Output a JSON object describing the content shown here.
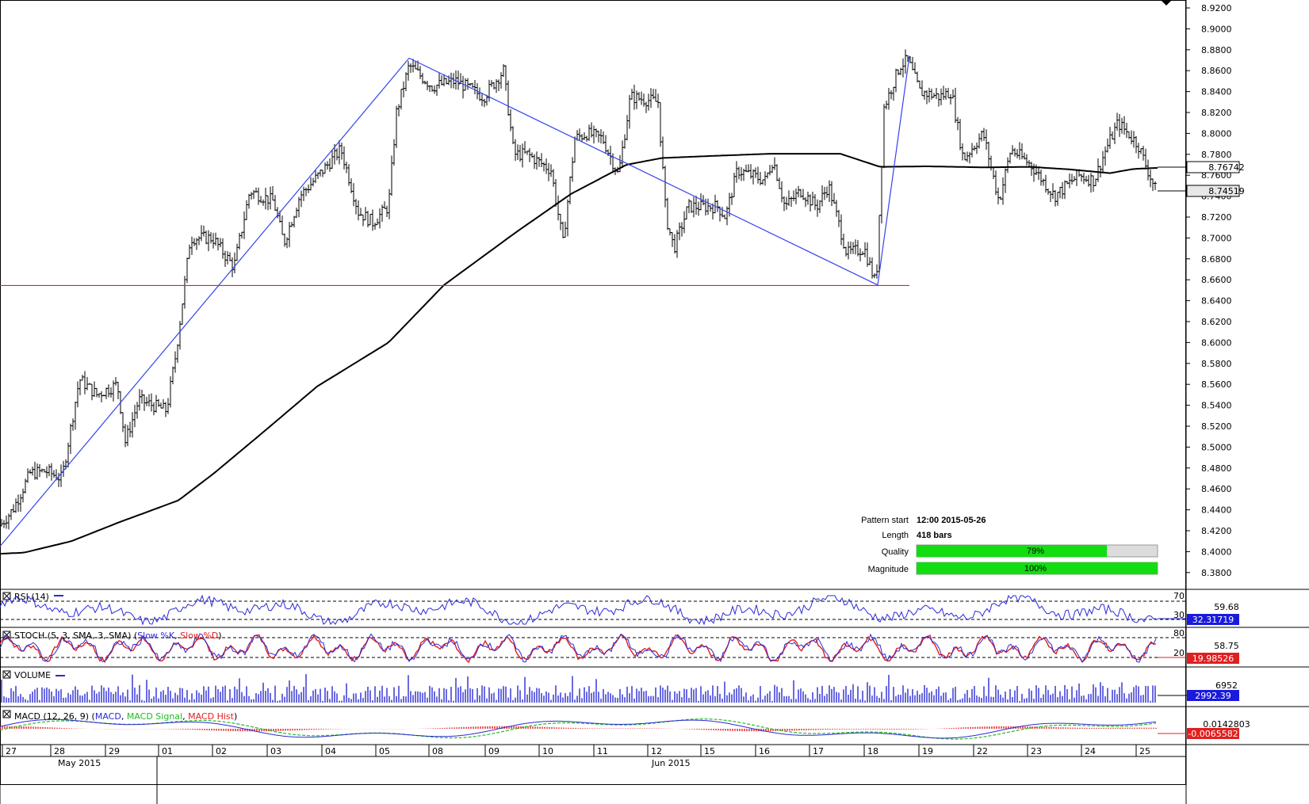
{
  "chart_data": {
    "type": "candlestick",
    "price_axis": {
      "ylim": [
        8.37,
        8.93
      ],
      "tick_labels": [
        "8.9200",
        "8.9000",
        "8.8800",
        "8.8600",
        "8.8400",
        "8.8200",
        "8.8000",
        "8.7800",
        "8.7600",
        "8.7400",
        "8.7200",
        "8.7000",
        "8.6800",
        "8.6600",
        "8.6400",
        "8.6200",
        "8.6000",
        "8.5800",
        "8.5600",
        "8.5400",
        "8.5200",
        "8.5000",
        "8.4800",
        "8.4600",
        "8.4400",
        "8.4200",
        "8.4000",
        "8.3800"
      ],
      "tick_values": [
        8.92,
        8.9,
        8.88,
        8.86,
        8.84,
        8.82,
        8.8,
        8.78,
        8.76,
        8.74,
        8.72,
        8.7,
        8.68,
        8.66,
        8.64,
        8.62,
        8.6,
        8.58,
        8.56,
        8.54,
        8.52,
        8.5,
        8.48,
        8.46,
        8.44,
        8.42,
        8.4,
        8.38
      ],
      "ma_last_label": "8.76742",
      "ma_last_value": 8.76742,
      "price_last_label": "8.74519",
      "price_last_value": 8.74519
    },
    "time_axis": {
      "day_labels": [
        "27",
        "28",
        "29",
        "01",
        "02",
        "03",
        "04",
        "05",
        "08",
        "09",
        "10",
        "11",
        "12",
        "15",
        "16",
        "17",
        "18",
        "19",
        "22",
        "23",
        "24",
        "25"
      ],
      "month_labels": [
        "May 2015",
        "Jun 2015"
      ]
    },
    "price_series": {
      "name": "",
      "anchors": [
        [
          0,
          8.425
        ],
        [
          16,
          8.44
        ],
        [
          38,
          8.475
        ],
        [
          58,
          8.477
        ],
        [
          78,
          8.47
        ],
        [
          100,
          8.565
        ],
        [
          122,
          8.55
        ],
        [
          148,
          8.56
        ],
        [
          158,
          8.505
        ],
        [
          175,
          8.545
        ],
        [
          210,
          8.535
        ],
        [
          222,
          8.59
        ],
        [
          240,
          8.7
        ],
        [
          268,
          8.7
        ],
        [
          295,
          8.672
        ],
        [
          315,
          8.745
        ],
        [
          345,
          8.735
        ],
        [
          358,
          8.695
        ],
        [
          378,
          8.74
        ],
        [
          402,
          8.76
        ],
        [
          430,
          8.785
        ],
        [
          452,
          8.725
        ],
        [
          470,
          8.715
        ],
        [
          490,
          8.73
        ],
        [
          500,
          8.82
        ],
        [
          516,
          8.865
        ],
        [
          545,
          8.845
        ],
        [
          575,
          8.85
        ],
        [
          610,
          8.835
        ],
        [
          635,
          8.86
        ],
        [
          648,
          8.78
        ],
        [
          665,
          8.78
        ],
        [
          695,
          8.765
        ],
        [
          710,
          8.695
        ],
        [
          725,
          8.795
        ],
        [
          740,
          8.8
        ],
        [
          760,
          8.795
        ],
        [
          780,
          8.76
        ],
        [
          795,
          8.835
        ],
        [
          830,
          8.83
        ],
        [
          840,
          8.72
        ],
        [
          850,
          8.69
        ],
        [
          868,
          8.73
        ],
        [
          905,
          8.73
        ],
        [
          915,
          8.72
        ],
        [
          930,
          8.765
        ],
        [
          965,
          8.755
        ],
        [
          975,
          8.775
        ],
        [
          990,
          8.73
        ],
        [
          1010,
          8.745
        ],
        [
          1030,
          8.73
        ],
        [
          1045,
          8.75
        ],
        [
          1068,
          8.685
        ],
        [
          1090,
          8.69
        ],
        [
          1105,
          8.655
        ],
        [
          1115,
          8.825
        ],
        [
          1135,
          8.865
        ],
        [
          1145,
          8.87
        ],
        [
          1160,
          8.84
        ],
        [
          1185,
          8.835
        ],
        [
          1200,
          8.84
        ],
        [
          1215,
          8.775
        ],
        [
          1240,
          8.8
        ],
        [
          1260,
          8.735
        ],
        [
          1275,
          8.785
        ],
        [
          1300,
          8.77
        ],
        [
          1330,
          8.74
        ],
        [
          1360,
          8.76
        ],
        [
          1380,
          8.755
        ],
        [
          1395,
          8.785
        ],
        [
          1410,
          8.81
        ],
        [
          1435,
          8.79
        ],
        [
          1450,
          8.76
        ],
        [
          1458,
          8.745
        ]
      ]
    },
    "moving_average": {
      "name": "",
      "anchors": [
        [
          0,
          8.398
        ],
        [
          30,
          8.399
        ],
        [
          90,
          8.41
        ],
        [
          150,
          8.428
        ],
        [
          225,
          8.449
        ],
        [
          270,
          8.475
        ],
        [
          330,
          8.513
        ],
        [
          400,
          8.558
        ],
        [
          490,
          8.6
        ],
        [
          560,
          8.655
        ],
        [
          650,
          8.705
        ],
        [
          720,
          8.742
        ],
        [
          790,
          8.77
        ],
        [
          835,
          8.7765
        ],
        [
          900,
          8.7785
        ],
        [
          970,
          8.7805
        ],
        [
          1060,
          8.7805
        ],
        [
          1110,
          8.768
        ],
        [
          1170,
          8.7685
        ],
        [
          1240,
          8.7675
        ],
        [
          1300,
          8.768
        ],
        [
          1350,
          8.7655
        ],
        [
          1400,
          8.762
        ],
        [
          1430,
          8.766
        ],
        [
          1460,
          8.767
        ]
      ]
    },
    "pattern": {
      "lines": [
        {
          "from": [
            0,
            8.405
          ],
          "to": [
            516,
            8.872
          ]
        },
        {
          "from": [
            516,
            8.872
          ],
          "to": [
            1107,
            8.655
          ]
        },
        {
          "from": [
            1107,
            8.655
          ],
          "to": [
            1147,
            8.874
          ]
        }
      ],
      "support": {
        "value": 8.6545,
        "x_end": 1147
      },
      "info": {
        "start_label": "Pattern start",
        "start_value": "12:00 2015-05-26",
        "length_label": "Length",
        "length_value": "418 bars",
        "quality_label": "Quality",
        "quality_value": "79%",
        "quality_fraction": 0.79,
        "magnitude_label": "Magnitude",
        "magnitude_value": "100%",
        "magnitude_fraction": 1.0
      }
    },
    "indicators": {
      "rsi": {
        "title": "RSI (14)",
        "level_high": "70",
        "level_low": "30",
        "mid_label": "59.68",
        "value_label": "32.31719",
        "value": 32.31719
      },
      "stoch": {
        "title": "STOCH (5, 3, SMA, 3, SMA)",
        "k_name": "Slow %K",
        "d_name": "Slow %D",
        "level_high": "80",
        "level_low": "20",
        "mid_label": "58.75",
        "value_label": "19.98526",
        "value": 19.98526
      },
      "volume": {
        "title": "VOLUME",
        "mid_label": "6952",
        "value_label": "2992.39",
        "value": 2992.39
      },
      "macd": {
        "title": "MACD (12, 26, 9)",
        "main_name": "MACD",
        "signal_name": "MACD Signal",
        "hist_name": "MACD Hist",
        "top_label": "0.0142803",
        "value_label": "-0.0065582",
        "value": -0.0065582
      }
    },
    "colors": {
      "bars": "#000000",
      "ma": "#000000",
      "pattern_line": "#3344ee",
      "support": "#dd2222",
      "rsi": "#2a2ad6",
      "stoch_k": "#2a2ad6",
      "stoch_d": "#e02020",
      "volume": "#2a2ad6",
      "macd_main": "#2a2ad6",
      "macd_signal": "#22bb22",
      "macd_hist": "#e02020",
      "bar_fill": "#11dd11",
      "axis_box": "#000000",
      "rsi_box": "#1a1add",
      "stoch_box": "#e02020",
      "volume_box": "#1a1add",
      "macd_box": "#e02020"
    }
  }
}
